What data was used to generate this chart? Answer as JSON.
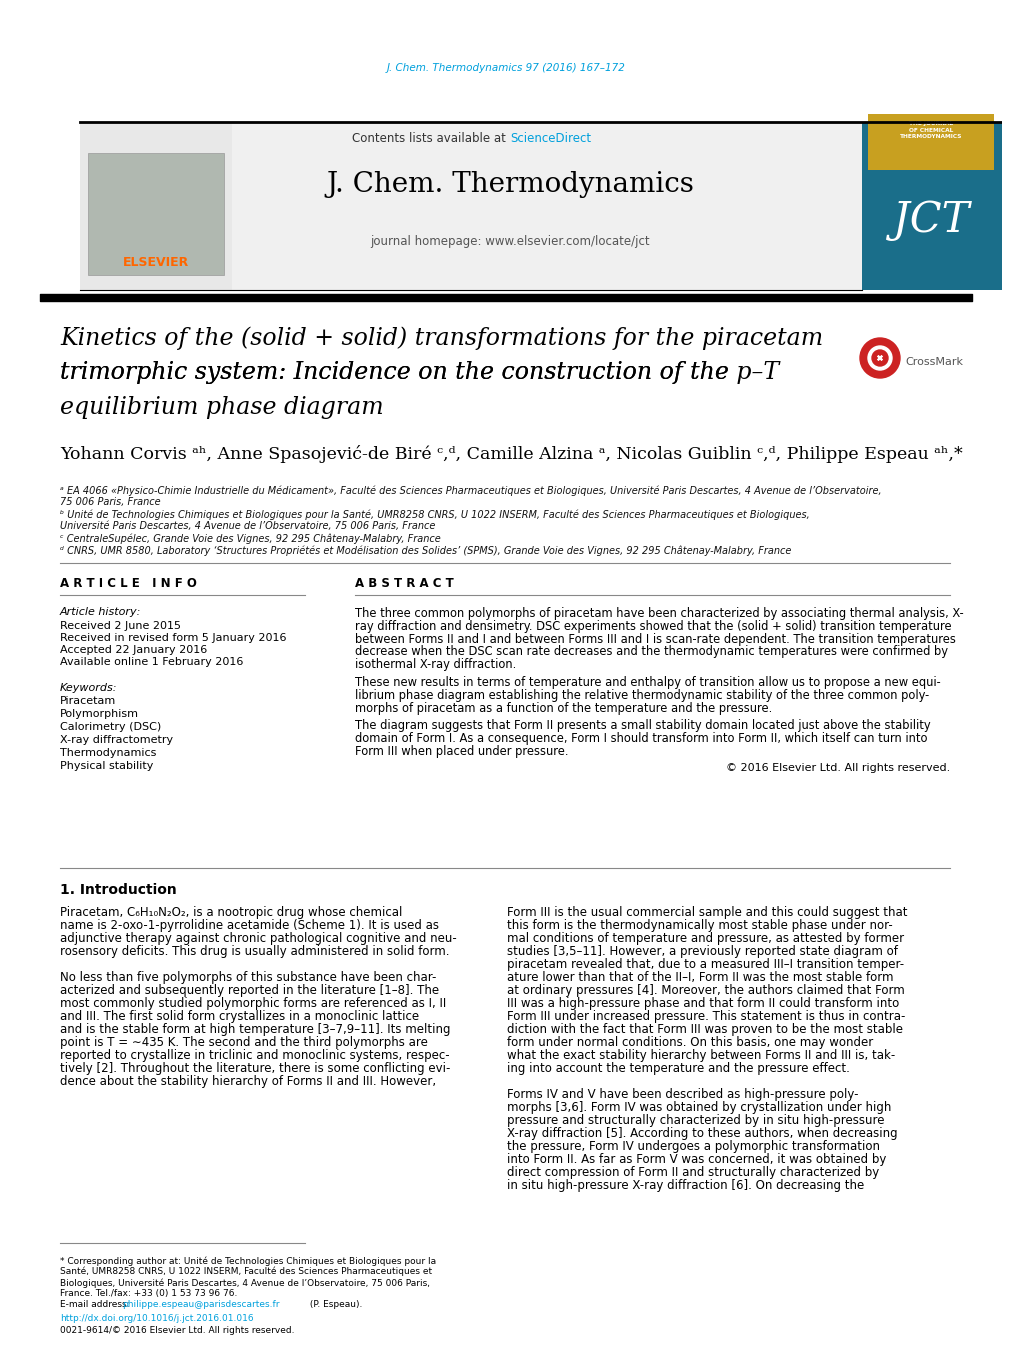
{
  "journal_citation": "J. Chem. Thermodynamics 97 (2016) 167–172",
  "journal_name": "J. Chem. Thermodynamics",
  "journal_homepage": "journal homepage: www.elsevier.com/locate/jct",
  "contents_text": "Contents lists available at ",
  "sciencedirect_text": "ScienceDirect",
  "elsevier_color": "#FF6600",
  "sciencedirect_color": "#00A0DC",
  "title_line1": "Kinetics of the (solid + solid) transformations for the piracetam",
  "title_line2a": "trimorphic system: Incidence on the construction of the ",
  "title_line2b": "p–T",
  "title_line3": "equilibrium phase diagram",
  "author_line": "Yohann Corvis ᵃʰ, Anne Spasojević-de Biré ᶜ,ᵈ, Camille Alzina ᵃ, Nicolas Guiblin ᶜ,ᵈ, Philippe Espeau ᵃʰ,*",
  "affil_a": "ᵃ EA 4066 «Physico-Chimie Industrielle du Médicament», Faculté des Sciences Pharmaceutiques et Biologiques, Université Paris Descartes, 4 Avenue de l’Observatoire,",
  "affil_a2": "75 006 Paris, France",
  "affil_b": "ᵇ Unité de Technologies Chimiques et Biologiques pour la Santé, UMR8258 CNRS, U 1022 INSERM, Faculté des Sciences Pharmaceutiques et Biologiques,",
  "affil_b2": "Université Paris Descartes, 4 Avenue de l’Observatoire, 75 006 Paris, France",
  "affil_c": "ᶜ CentraleSupélec, Grande Voie des Vignes, 92 295 Châtenay-Malabry, France",
  "affil_d": "ᵈ CNRS, UMR 8580, Laboratory ‘Structures Propriétés et Modélisation des Solides’ (SPMS), Grande Voie des Vignes, 92 295 Châtenay-Malabry, France",
  "article_info_title": "A R T I C L E   I N F O",
  "abstract_title": "A B S T R A C T",
  "article_history_label": "Article history:",
  "received": "Received 2 June 2015",
  "revised": "Received in revised form 5 January 2016",
  "accepted": "Accepted 22 January 2016",
  "available": "Available online 1 February 2016",
  "keywords_label": "Keywords:",
  "keywords": [
    "Piracetam",
    "Polymorphism",
    "Calorimetry (DSC)",
    "X-ray diffractometry",
    "Thermodynamics",
    "Physical stability"
  ],
  "abs_lines_1": [
    "The three common polymorphs of piracetam have been characterized by associating thermal analysis, X-",
    "ray diffraction and densimetry. DSC experiments showed that the (solid + solid) transition temperature",
    "between Forms II and I and between Forms III and I is scan-rate dependent. The transition temperatures",
    "decrease when the DSC scan rate decreases and the thermodynamic temperatures were confirmed by",
    "isothermal X-ray diffraction."
  ],
  "abs_lines_2": [
    "These new results in terms of temperature and enthalpy of transition allow us to propose a new equi-",
    "librium phase diagram establishing the relative thermodynamic stability of the three common poly-",
    "morphs of piracetam as a function of the temperature and the pressure."
  ],
  "abs_lines_3": [
    "The diagram suggests that Form II presents a small stability domain located just above the stability",
    "domain of Form I. As a consequence, Form I should transform into Form II, which itself can turn into",
    "Form III when placed under pressure."
  ],
  "abs_copyright": "© 2016 Elsevier Ltd. All rights reserved.",
  "intro_title": "1. Introduction",
  "intro_left": [
    "Piracetam, C₆H₁₀N₂O₂, is a nootropic drug whose chemical",
    "name is 2-oxo-1-pyrrolidine acetamide (Scheme 1). It is used as",
    "adjunctive therapy against chronic pathological cognitive and neu-",
    "rosensory deficits. This drug is usually administered in solid form.",
    "",
    "No less than five polymorphs of this substance have been char-",
    "acterized and subsequently reported in the literature [1–8]. The",
    "most commonly studied polymorphic forms are referenced as I, II",
    "and III. The first solid form crystallizes in a monoclinic lattice",
    "and is the stable form at high temperature [3–7,9–11]. Its melting",
    "point is T = ∼435 K. The second and the third polymorphs are",
    "reported to crystallize in triclinic and monoclinic systems, respec-",
    "tively [2]. Throughout the literature, there is some conflicting evi-",
    "dence about the stability hierarchy of Forms II and III. However,"
  ],
  "intro_right": [
    "Form III is the usual commercial sample and this could suggest that",
    "this form is the thermodynamically most stable phase under nor-",
    "mal conditions of temperature and pressure, as attested by former",
    "studies [3,5–11]. However, a previously reported state diagram of",
    "piracetam revealed that, due to a measured III–I transition temper-",
    "ature lower than that of the II–I, Form II was the most stable form",
    "at ordinary pressures [4]. Moreover, the authors claimed that Form",
    "III was a high-pressure phase and that form II could transform into",
    "Form III under increased pressure. This statement is thus in contra-",
    "diction with the fact that Form III was proven to be the most stable",
    "form under normal conditions. On this basis, one may wonder",
    "what the exact stability hierarchy between Forms II and III is, tak-",
    "ing into account the temperature and the pressure effect.",
    "",
    "Forms IV and V have been described as high-pressure poly-",
    "morphs [3,6]. Form IV was obtained by crystallization under high",
    "pressure and structurally characterized by in situ high-pressure",
    "X-ray diffraction [5]. According to these authors, when decreasing",
    "the pressure, Form IV undergoes a polymorphic transformation",
    "into Form II. As far as Form V was concerned, it was obtained by",
    "direct compression of Form II and structurally characterized by",
    "in situ high-pressure X-ray diffraction [6]. On decreasing the"
  ],
  "footnote_lines": [
    "* Corresponding author at: Unité de Technologies Chimiques et Biologiques pour la",
    "Santé, UMR8258 CNRS, U 1022 INSERM, Faculté des Sciences Pharmaceutiques et",
    "Biologiques, Université Paris Descartes, 4 Avenue de l’Observatoire, 75 006 Paris,",
    "France. Tel./fax: +33 (0) 1 53 73 96 76."
  ],
  "footnote_email_label": "E-mail address: ",
  "footnote_email": "philippe.espeau@parisdescartes.fr",
  "footnote_email_suffix": " (P. Espeau).",
  "doi": "http://dx.doi.org/10.1016/j.jct.2016.01.016",
  "issn": "0021-9614/© 2016 Elsevier Ltd. All rights reserved.",
  "bg_color": "#ffffff",
  "citation_color": "#00A0DC",
  "scidir_color": "#00A0DC",
  "elsevier_orange": "#FF6600",
  "jct_blue": "#1a6e8a",
  "jct_yellow": "#c8a020"
}
